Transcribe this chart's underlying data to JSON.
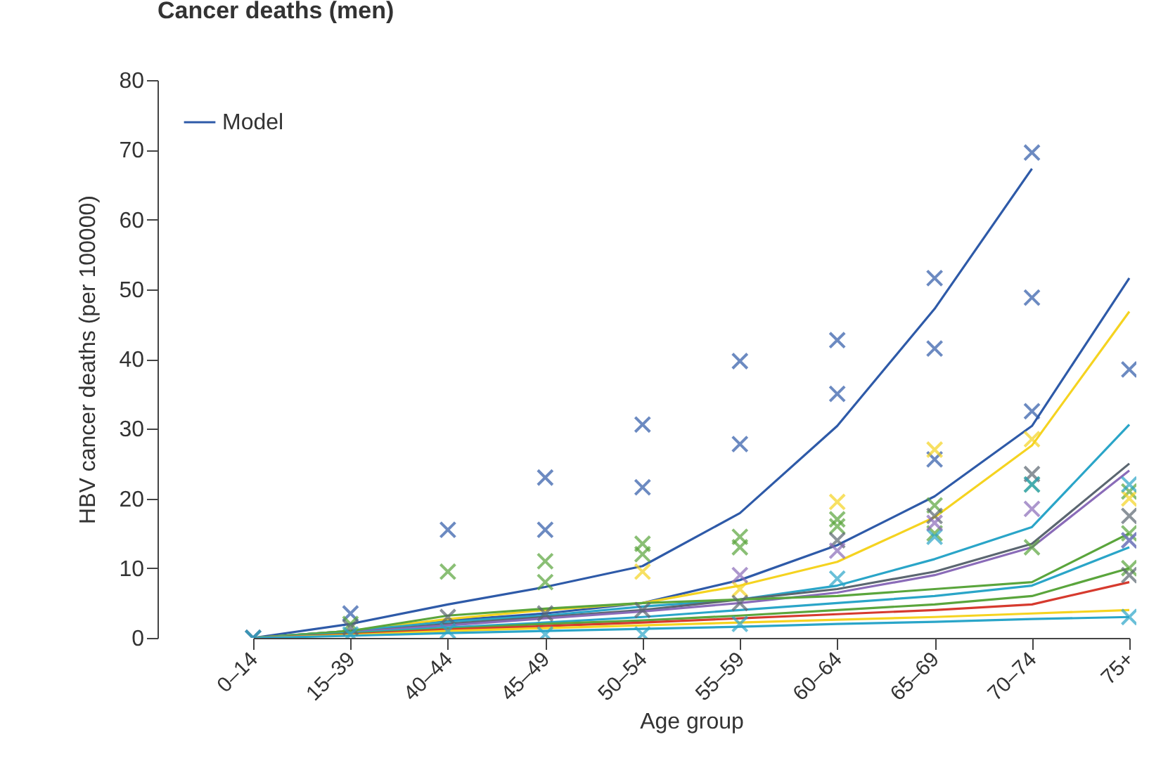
{
  "chart_data": {
    "type": "line",
    "title": "Cancer deaths (men)",
    "xlabel": "Age group",
    "ylabel": "HBV cancer deaths (per 100000)",
    "categories": [
      "0–14",
      "15–39",
      "40–44",
      "45–49",
      "50–54",
      "55–59",
      "60–64",
      "65–69",
      "70–74",
      "75+"
    ],
    "ylim": [
      0,
      80
    ],
    "yticks": [
      0,
      10,
      20,
      30,
      40,
      50,
      60,
      70,
      80
    ],
    "legend": "top left",
    "line_style": "solid",
    "series": [
      {
        "name": "Model",
        "color": "#2e5aa8",
        "values": [
          0,
          2,
          4.8,
          7.3,
          10.3,
          17.9,
          30.4,
          47.2,
          67.3,
          null
        ]
      },
      {
        "color": "#2e5aa8",
        "values": [
          0,
          1,
          2.5,
          3.5,
          5,
          8.3,
          13.3,
          20.3,
          30.4,
          51.6
        ]
      },
      {
        "color": "#f5d320",
        "values": [
          0,
          1,
          2.7,
          4,
          5,
          7.5,
          10.9,
          17.3,
          27.6,
          46.8
        ]
      },
      {
        "color": "#2aa5c8",
        "values": [
          0,
          1,
          2.3,
          3.2,
          4.5,
          5.5,
          7.5,
          11.3,
          15.9,
          30.6
        ]
      },
      {
        "color": "#5b6670",
        "values": [
          0,
          0.8,
          2,
          3,
          4,
          5.5,
          7,
          9.5,
          13.5,
          25
        ]
      },
      {
        "color": "#8a6bb8",
        "values": [
          0,
          0.8,
          1.8,
          2.8,
          3.8,
          5,
          6.5,
          9,
          13,
          24
        ]
      },
      {
        "color": "#5aa53c",
        "values": [
          0,
          1,
          3.2,
          4.2,
          5,
          5.5,
          6,
          7,
          8,
          15
        ]
      },
      {
        "color": "#2aa5c8",
        "values": [
          0,
          0.7,
          1.5,
          2.2,
          3,
          4,
          5,
          6,
          7.5,
          13
        ]
      },
      {
        "color": "#5aa53c",
        "values": [
          0,
          0.6,
          1.3,
          2,
          2.5,
          3.2,
          4,
          4.8,
          6,
          10
        ]
      },
      {
        "color": "#d63a2e",
        "values": [
          0,
          0.5,
          1.2,
          1.7,
          2.2,
          2.8,
          3.4,
          4,
          4.8,
          8
        ]
      },
      {
        "color": "#f5d320",
        "values": [
          0,
          0.4,
          1,
          1.4,
          1.8,
          2.2,
          2.6,
          3,
          3.5,
          4
        ]
      },
      {
        "color": "#2aa5c8",
        "values": [
          0,
          0.3,
          0.7,
          1,
          1.3,
          1.6,
          2,
          2.3,
          2.7,
          3
        ]
      },
      {
        "type": "scatter",
        "marker": "cross",
        "color": "#2e5aa8",
        "x": [
          "0–14",
          "15–39",
          "40–44",
          "45–49",
          "45–49",
          "50–54",
          "50–54",
          "55–59",
          "55–59",
          "60–64",
          "60–64",
          "65–69",
          "65–69",
          "65–69",
          "70–74",
          "70–74",
          "70–74",
          "75+"
        ],
        "values": [
          0,
          3.5,
          15.5,
          23,
          15.5,
          30.6,
          21.6,
          39.7,
          27.8,
          42.7,
          35,
          51.6,
          41.5,
          25.6,
          69.6,
          48.8,
          32.5,
          38.5
        ]
      },
      {
        "type": "scatter",
        "marker": "cross",
        "color": "#5aa53c",
        "x": [
          "15–39",
          "40–44",
          "45–49",
          "45–49",
          "50–54",
          "50–54",
          "55–59",
          "55–59",
          "60–64",
          "60–64",
          "65–69",
          "65–69",
          "70–74",
          "70–74",
          "75+",
          "75+",
          "75+"
        ],
        "values": [
          2,
          9.5,
          11,
          8,
          13.5,
          12,
          14.5,
          13,
          17,
          16,
          19,
          15,
          22,
          13,
          21,
          15,
          10
        ]
      },
      {
        "type": "scatter",
        "marker": "cross",
        "color": "#f5d320",
        "x": [
          "50–54",
          "55–59",
          "60–64",
          "65–69",
          "70–74",
          "75+"
        ],
        "values": [
          9.5,
          7,
          19.5,
          27,
          28.5,
          20
        ]
      },
      {
        "type": "scatter",
        "marker": "cross",
        "color": "#5b6670",
        "x": [
          "0–14",
          "15–39",
          "40–44",
          "45–49",
          "50–54",
          "55–59",
          "60–64",
          "65–69",
          "70–74",
          "75+",
          "75+"
        ],
        "values": [
          0,
          1.5,
          3,
          3.5,
          4,
          5,
          14,
          17.5,
          23.5,
          17.5,
          9
        ]
      },
      {
        "type": "scatter",
        "marker": "cross",
        "color": "#2aa5c8",
        "x": [
          "0–14",
          "15–39",
          "40–44",
          "45–49",
          "50–54",
          "55–59",
          "60–64",
          "65–69",
          "70–74",
          "75+",
          "75+",
          "75+"
        ],
        "values": [
          0,
          0.5,
          1,
          0.5,
          0.5,
          2,
          8.5,
          14.5,
          22,
          22,
          14,
          3
        ]
      },
      {
        "type": "scatter",
        "marker": "cross",
        "color": "#8a6bb8",
        "x": [
          "55–59",
          "60–64",
          "65–69",
          "70–74",
          "75+"
        ],
        "values": [
          9,
          12.5,
          16.5,
          18.5,
          14
        ]
      }
    ]
  }
}
